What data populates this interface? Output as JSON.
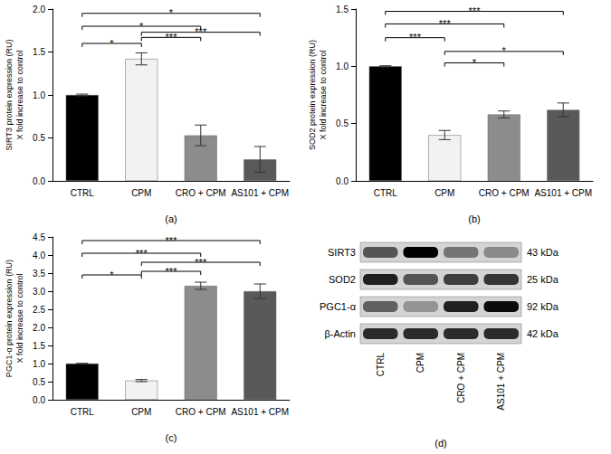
{
  "chart_data": [
    {
      "type": "bar",
      "label": "(a)",
      "ylabel": "SIRT3 protein expression (RU)\nX fold increase to control",
      "categories": [
        "CTRL",
        "CPM",
        "CRO + CPM",
        "AS101 + CPM"
      ],
      "values": [
        1.0,
        1.42,
        0.53,
        0.25
      ],
      "errors": [
        0.01,
        0.07,
        0.12,
        0.15
      ],
      "colors": [
        "#000000",
        "#f2f2f2",
        "#8c8c8c",
        "#595959"
      ],
      "ylim": [
        0,
        2
      ],
      "yticks": [
        {
          "value": 0,
          "label": "0.0"
        },
        {
          "value": 0.5,
          "label": "0.5"
        },
        {
          "value": 1,
          "label": "1.0"
        },
        {
          "value": 1.5,
          "label": "1.5"
        },
        {
          "value": 2,
          "label": "2.0"
        }
      ],
      "grid": false,
      "significance": [
        {
          "from": "CTRL",
          "to": "CPM",
          "y": 1.6,
          "label": "*"
        },
        {
          "from": "CPM",
          "to": "CRO + CPM",
          "y": 1.67,
          "label": "***"
        },
        {
          "from": "CTRL",
          "to": "CRO + CPM",
          "y": 1.8,
          "label": "*"
        },
        {
          "from": "CPM",
          "to": "AS101 + CPM",
          "y": 1.73,
          "label": "***"
        },
        {
          "from": "CTRL",
          "to": "AS101 + CPM",
          "y": 1.95,
          "label": "*"
        }
      ]
    },
    {
      "type": "bar",
      "label": "(b)",
      "ylabel": "SOD2 protein expression (RU)\nX fold increase to control",
      "categories": [
        "CTRL",
        "CPM",
        "CRO + CPM",
        "AS101 + CPM"
      ],
      "values": [
        1.0,
        0.4,
        0.58,
        0.62
      ],
      "errors": [
        0.005,
        0.04,
        0.03,
        0.06
      ],
      "colors": [
        "#000000",
        "#f2f2f2",
        "#8c8c8c",
        "#595959"
      ],
      "ylim": [
        0,
        1.5
      ],
      "yticks": [
        {
          "value": 0,
          "label": "0.0"
        },
        {
          "value": 0.5,
          "label": "0.5"
        },
        {
          "value": 1,
          "label": "1.0"
        },
        {
          "value": 1.5,
          "label": "1.5"
        }
      ],
      "grid": false,
      "significance": [
        {
          "from": "CPM",
          "to": "CRO + CPM",
          "y": 1.03,
          "label": "*"
        },
        {
          "from": "CPM",
          "to": "AS101 + CPM",
          "y": 1.13,
          "label": "*"
        },
        {
          "from": "CTRL",
          "to": "CPM",
          "y": 1.25,
          "label": "***"
        },
        {
          "from": "CTRL",
          "to": "CRO + CPM",
          "y": 1.37,
          "label": "***"
        },
        {
          "from": "CTRL",
          "to": "AS101 + CPM",
          "y": 1.48,
          "label": "***"
        }
      ]
    },
    {
      "type": "bar",
      "label": "(c)",
      "ylabel": "PGC1-α protein expression (RU)\nX fold increase to control",
      "categories": [
        "CTRL",
        "CPM",
        "CRO + CPM",
        "AS101 + CPM"
      ],
      "values": [
        1.0,
        0.53,
        3.15,
        3.0
      ],
      "errors": [
        0.005,
        0.03,
        0.1,
        0.2
      ],
      "colors": [
        "#000000",
        "#f2f2f2",
        "#8c8c8c",
        "#595959"
      ],
      "ylim": [
        0,
        4.5
      ],
      "yticks": [
        {
          "value": 0,
          "label": "0.0"
        },
        {
          "value": 0.5,
          "label": "0.5"
        },
        {
          "value": 1,
          "label": "1.0"
        },
        {
          "value": 1.5,
          "label": "1.5"
        },
        {
          "value": 2,
          "label": "2.0"
        },
        {
          "value": 2.5,
          "label": "2.5"
        },
        {
          "value": 3,
          "label": "3.0"
        },
        {
          "value": 3.5,
          "label": "3.5"
        },
        {
          "value": 4,
          "label": "4.0"
        },
        {
          "value": 4.5,
          "label": "4.5"
        }
      ],
      "grid": false,
      "significance": [
        {
          "from": "CTRL",
          "to": "CPM",
          "y": 3.45,
          "label": "*"
        },
        {
          "from": "CPM",
          "to": "CRO + CPM",
          "y": 3.55,
          "label": "***"
        },
        {
          "from": "CPM",
          "to": "AS101 + CPM",
          "y": 3.8,
          "label": "***"
        },
        {
          "from": "CTRL",
          "to": "CRO + CPM",
          "y": 4.05,
          "label": "***"
        },
        {
          "from": "CTRL",
          "to": "AS101 + CPM",
          "y": 4.4,
          "label": "***"
        }
      ]
    }
  ],
  "blot": {
    "label": "(d)",
    "lanes": [
      "CTRL",
      "CPM",
      "CRO + CPM",
      "AS101 + CPM"
    ],
    "rows": [
      {
        "protein": "SIRT3",
        "size": "43 kDa",
        "intensity": [
          0.6,
          1.0,
          0.45,
          0.35
        ]
      },
      {
        "protein": "SOD2",
        "size": "25 kDa",
        "intensity": [
          0.85,
          0.6,
          0.7,
          0.75
        ]
      },
      {
        "protein": "PGC1-α",
        "size": "92 kDa",
        "intensity": [
          0.55,
          0.3,
          0.85,
          0.95
        ]
      },
      {
        "protein": "β-Actin",
        "size": "42 kDa",
        "intensity": [
          0.8,
          0.8,
          0.8,
          0.8
        ]
      }
    ]
  }
}
